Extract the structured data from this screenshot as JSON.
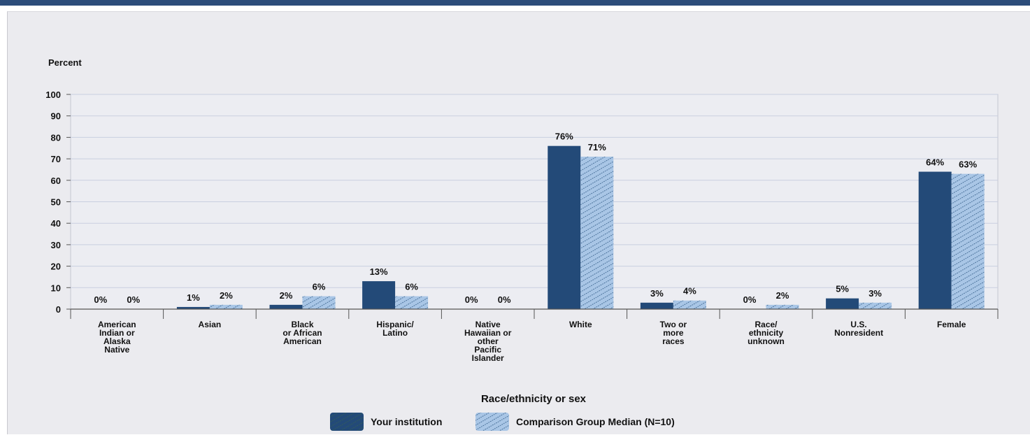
{
  "colors": {
    "series1": "#234a78",
    "series2": "#a9c6e6",
    "series2_hatch": "#244f7c",
    "grid": "#c9cfe0",
    "axis": "#555555",
    "top_bar": "#2c4d7a"
  },
  "chart_data": {
    "type": "bar",
    "title": "",
    "ylabel": "Percent",
    "xlabel": "Race/ethnicity or sex",
    "ylim": [
      0,
      100
    ],
    "yticks": [
      0,
      10,
      20,
      30,
      40,
      50,
      60,
      70,
      80,
      90,
      100
    ],
    "grid": true,
    "legend_position": "bottom-center",
    "categories": [
      [
        "American",
        "Indian or",
        "Alaska",
        "Native"
      ],
      [
        "Asian"
      ],
      [
        "Black",
        "or African",
        "American"
      ],
      [
        "Hispanic/",
        "Latino"
      ],
      [
        "Native",
        "Hawaiian or",
        "other",
        "Pacific",
        "Islander"
      ],
      [
        "White"
      ],
      [
        "Two or",
        "more",
        "races"
      ],
      [
        "Race/",
        "ethnicity",
        "unknown"
      ],
      [
        "U.S.",
        "Nonresident"
      ],
      [
        "Female"
      ]
    ],
    "series": [
      {
        "name": "Your institution",
        "values": [
          0,
          1,
          2,
          13,
          0,
          76,
          3,
          0,
          5,
          64
        ],
        "labels": [
          "0%",
          "1%",
          "2%",
          "13%",
          "0%",
          "76%",
          "3%",
          "0%",
          "5%",
          "64%"
        ]
      },
      {
        "name": "Comparison Group Median (N=10)",
        "values": [
          0,
          2,
          6,
          6,
          0,
          71,
          4,
          2,
          3,
          63
        ],
        "labels": [
          "0%",
          "2%",
          "6%",
          "6%",
          "0%",
          "71%",
          "4%",
          "2%",
          "3%",
          "63%"
        ]
      }
    ]
  }
}
